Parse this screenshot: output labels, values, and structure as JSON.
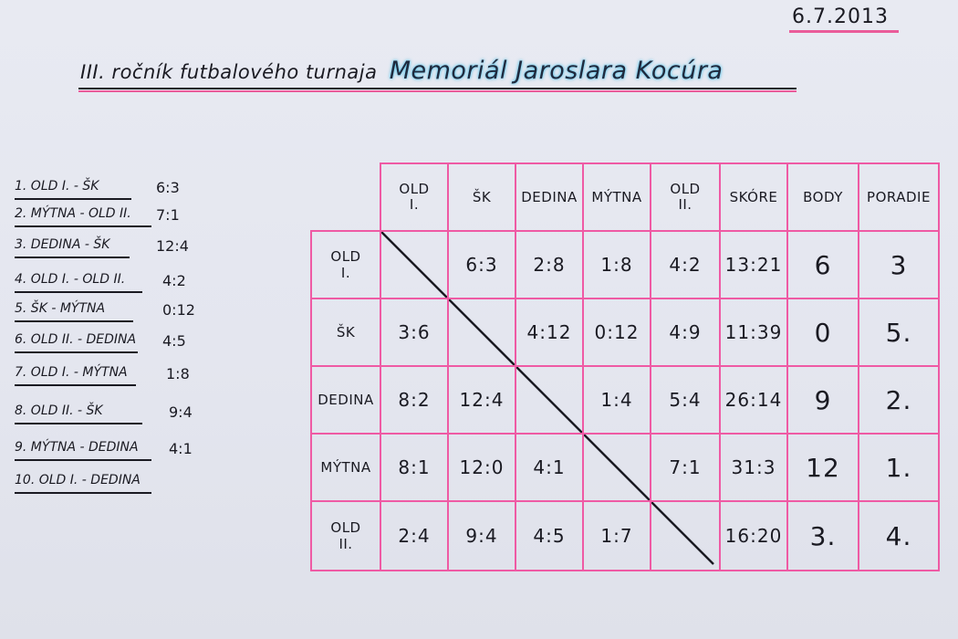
{
  "date": "6.7.2013",
  "title": {
    "main": "III. ročník futbalového turnaja",
    "memorial": "Memoriál Jaroslara Kocúra"
  },
  "results": [
    {
      "match": "1. OLD I. - ŠK",
      "score": "6:3"
    },
    {
      "match": "2. MÝTNA - OLD II.",
      "score": "7:1"
    },
    {
      "match": "3. DEDINA - ŠK",
      "score": "12:4"
    },
    {
      "match": "4. OLD I. - OLD II.",
      "score": "4:2"
    },
    {
      "match": "5. ŠK - MÝTNA",
      "score": "0:12"
    },
    {
      "match": "6. OLD II. - DEDINA",
      "score": "4:5"
    },
    {
      "match": "7. OLD I. - MÝTNA",
      "score": "1:8"
    },
    {
      "match": "8. OLD II. - ŠK",
      "score": "9:4"
    },
    {
      "match": "9. MÝTNA - DEDINA",
      "score": "4:1"
    },
    {
      "match": "10. OLD I. - DEDINA",
      "score": ""
    }
  ],
  "table": {
    "headers": [
      "OLD\nI.",
      "ŠK",
      "DEDINA",
      "MÝTNA",
      "OLD\nII.",
      "SKÓRE",
      "BODY",
      "PORADIE"
    ],
    "rows": [
      {
        "team": "OLD\nI.",
        "cells": [
          "",
          "6:3",
          "2:8",
          "1:8",
          "4:2",
          "13:21",
          "6",
          "3"
        ]
      },
      {
        "team": "ŠK",
        "cells": [
          "3:6",
          "",
          "4:12",
          "0:12",
          "4:9",
          "11:39",
          "0",
          "5."
        ]
      },
      {
        "team": "DEDINA",
        "cells": [
          "8:2",
          "12:4",
          "",
          "1:4",
          "5:4",
          "26:14",
          "9",
          "2."
        ]
      },
      {
        "team": "MÝTNA",
        "cells": [
          "8:1",
          "12:0",
          "4:1",
          "",
          "7:1",
          "31:3",
          "12",
          "1."
        ]
      },
      {
        "team": "OLD\nII.",
        "cells": [
          "2:4",
          "9:4",
          "4:5",
          "1:7",
          "",
          "16:20",
          "3.",
          "4."
        ]
      }
    ]
  },
  "colors": {
    "grid": "#ef5aa4",
    "ink": "#1a1a22",
    "paper": "#e4e6ef",
    "highlight": "#58c2e8"
  }
}
